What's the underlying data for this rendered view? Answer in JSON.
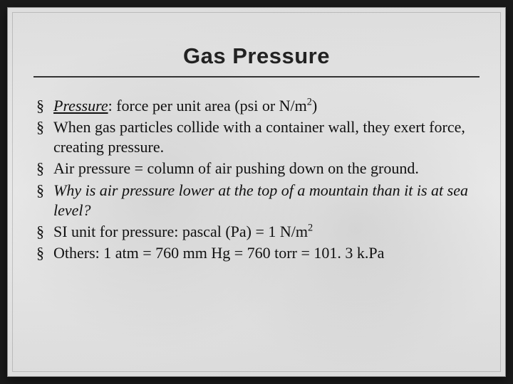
{
  "slide": {
    "title": "Gas Pressure",
    "background_color": "#e8e8e8",
    "title_fontsize": 31,
    "body_fontsize": 22,
    "text_color": "#111111",
    "rule_color": "#333333",
    "bullet_glyph": "§",
    "bullets": [
      {
        "term": "Pressure",
        "after_term": ": force per unit area (psi or N/m",
        "sup": "2",
        "tail": ")",
        "style": "term"
      },
      {
        "text": "When gas particles collide with a container wall, they exert force, creating pressure.",
        "style": "normal"
      },
      {
        "text": "Air pressure = column of air pushing down on the ground.",
        "style": "normal"
      },
      {
        "text": "Why is air pressure lower at the top of a mountain than it is at sea level?",
        "style": "italic"
      },
      {
        "prefix": "SI unit for pressure: pascal (Pa) = 1 N/m",
        "sup": "2",
        "tail": "",
        "style": "normal-sup"
      },
      {
        "text": "Others: 1 atm = 760 mm Hg = 760 torr = 101. 3 k.Pa",
        "style": "normal"
      }
    ]
  }
}
